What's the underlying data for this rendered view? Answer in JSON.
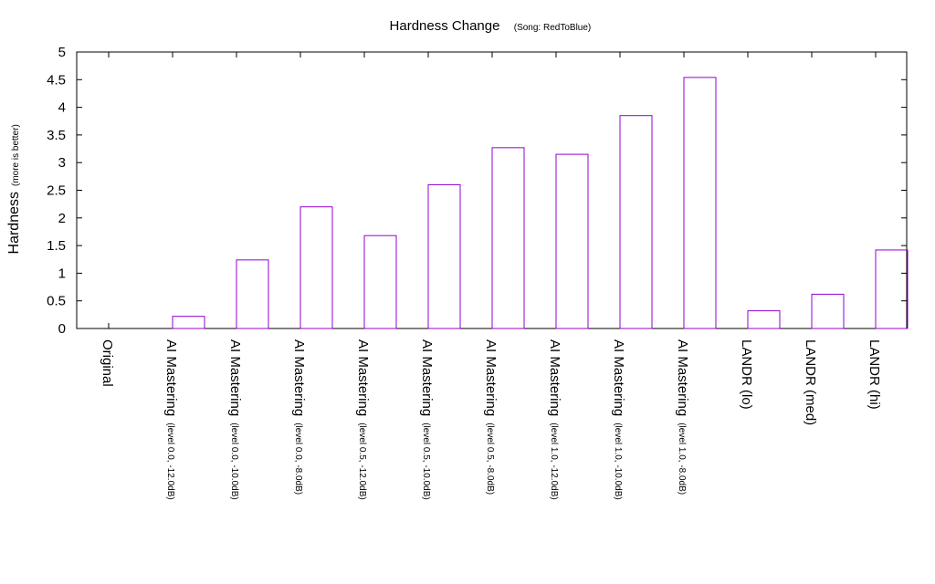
{
  "chart_data": {
    "type": "bar",
    "title": "Hardness Change",
    "subtitle": "(Song: RedToBlue)",
    "ylabel": "Hardness",
    "ylabel_note": "(more is better)",
    "xlabel": "",
    "ylim": [
      0,
      5
    ],
    "yticks": [
      "0",
      "0.5",
      "1",
      "1.5",
      "2",
      "2.5",
      "3",
      "3.5",
      "4",
      "4.5",
      "5"
    ],
    "grid": false,
    "legend": "none",
    "bar_color": "#9400d3",
    "categories": [
      {
        "main": "Original",
        "sub": ""
      },
      {
        "main": "AI Mastering",
        "sub": "(level 0.0, -12.0dB)"
      },
      {
        "main": "AI Mastering",
        "sub": "(level 0.0, -10.0dB)"
      },
      {
        "main": "AI Mastering",
        "sub": "(level 0.0, -8.0dB)"
      },
      {
        "main": "AI Mastering",
        "sub": "(level 0.5, -12.0dB)"
      },
      {
        "main": "AI Mastering",
        "sub": "(level 0.5, -10.0dB)"
      },
      {
        "main": "AI Mastering",
        "sub": "(level 0.5, -8.0dB)"
      },
      {
        "main": "AI Mastering",
        "sub": "(level 1.0, -12.0dB)"
      },
      {
        "main": "AI Mastering",
        "sub": "(level 1.0, -10.0dB)"
      },
      {
        "main": "AI Mastering",
        "sub": "(level 1.0, -8.0dB)"
      },
      {
        "main": "LANDR (lo)",
        "sub": ""
      },
      {
        "main": "LANDR (med)",
        "sub": ""
      },
      {
        "main": "LANDR (hi)",
        "sub": ""
      }
    ],
    "values": [
      0,
      0.22,
      1.24,
      2.2,
      1.68,
      2.6,
      3.27,
      3.15,
      3.85,
      4.54,
      0.32,
      0.62,
      1.42
    ]
  }
}
